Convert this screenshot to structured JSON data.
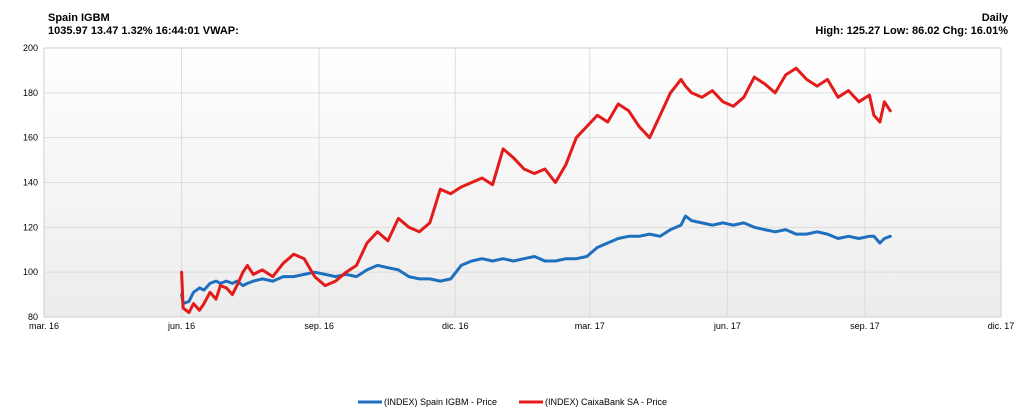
{
  "header": {
    "title": "Spain IGBM",
    "quote": "1035.97 13.47 1.32% 16:44:01 VWAP:",
    "interval": "Daily",
    "stats": "High: 125.27 Low: 86.02 Chg: 16.01%"
  },
  "chart_data": {
    "type": "line",
    "title": "",
    "xlabel": "",
    "ylabel": "",
    "ylim": [
      80,
      200
    ],
    "yticks": [
      80,
      100,
      120,
      140,
      160,
      180,
      200
    ],
    "xlim": [
      "2016-03-01",
      "2017-12-01"
    ],
    "xticks": [
      {
        "date": "2016-03-01",
        "label": "mar. 16"
      },
      {
        "date": "2016-06-01",
        "label": "jun. 16"
      },
      {
        "date": "2016-09-01",
        "label": "sep. 16"
      },
      {
        "date": "2016-12-01",
        "label": "dic. 16"
      },
      {
        "date": "2017-03-01",
        "label": "mar. 17"
      },
      {
        "date": "2017-06-01",
        "label": "jun. 17"
      },
      {
        "date": "2017-09-01",
        "label": "sep. 17"
      },
      {
        "date": "2017-12-01",
        "label": "dic. 17"
      }
    ],
    "grid": true,
    "legend_position": "bottom",
    "series": [
      {
        "name": "(INDEX) Spain IGBM - Price",
        "color": "#1f6fbf",
        "points": [
          [
            "2016-06-01",
            90
          ],
          [
            "2016-06-02",
            86
          ],
          [
            "2016-06-06",
            87
          ],
          [
            "2016-06-09",
            91
          ],
          [
            "2016-06-13",
            93
          ],
          [
            "2016-06-16",
            92
          ],
          [
            "2016-06-20",
            95
          ],
          [
            "2016-06-24",
            96
          ],
          [
            "2016-06-27",
            95
          ],
          [
            "2016-07-01",
            96
          ],
          [
            "2016-07-05",
            95
          ],
          [
            "2016-07-08",
            96
          ],
          [
            "2016-07-12",
            94
          ],
          [
            "2016-07-15",
            95
          ],
          [
            "2016-07-19",
            96
          ],
          [
            "2016-07-25",
            97
          ],
          [
            "2016-08-01",
            96
          ],
          [
            "2016-08-08",
            98
          ],
          [
            "2016-08-15",
            98
          ],
          [
            "2016-08-22",
            99
          ],
          [
            "2016-08-29",
            100
          ],
          [
            "2016-09-05",
            99
          ],
          [
            "2016-09-12",
            98
          ],
          [
            "2016-09-19",
            99
          ],
          [
            "2016-09-26",
            98
          ],
          [
            "2016-10-03",
            101
          ],
          [
            "2016-10-10",
            103
          ],
          [
            "2016-10-17",
            102
          ],
          [
            "2016-10-24",
            101
          ],
          [
            "2016-10-31",
            98
          ],
          [
            "2016-11-07",
            97
          ],
          [
            "2016-11-14",
            97
          ],
          [
            "2016-11-21",
            96
          ],
          [
            "2016-11-28",
            97
          ],
          [
            "2016-12-05",
            103
          ],
          [
            "2016-12-12",
            105
          ],
          [
            "2016-12-19",
            106
          ],
          [
            "2016-12-26",
            105
          ],
          [
            "2017-01-02",
            106
          ],
          [
            "2017-01-09",
            105
          ],
          [
            "2017-01-16",
            106
          ],
          [
            "2017-01-23",
            107
          ],
          [
            "2017-01-30",
            105
          ],
          [
            "2017-02-06",
            105
          ],
          [
            "2017-02-13",
            106
          ],
          [
            "2017-02-20",
            106
          ],
          [
            "2017-02-27",
            107
          ],
          [
            "2017-03-06",
            111
          ],
          [
            "2017-03-13",
            113
          ],
          [
            "2017-03-20",
            115
          ],
          [
            "2017-03-27",
            116
          ],
          [
            "2017-04-03",
            116
          ],
          [
            "2017-04-10",
            117
          ],
          [
            "2017-04-17",
            116
          ],
          [
            "2017-04-24",
            119
          ],
          [
            "2017-05-01",
            121
          ],
          [
            "2017-05-04",
            125
          ],
          [
            "2017-05-08",
            123
          ],
          [
            "2017-05-15",
            122
          ],
          [
            "2017-05-22",
            121
          ],
          [
            "2017-05-29",
            122
          ],
          [
            "2017-06-05",
            121
          ],
          [
            "2017-06-12",
            122
          ],
          [
            "2017-06-19",
            120
          ],
          [
            "2017-06-26",
            119
          ],
          [
            "2017-07-03",
            118
          ],
          [
            "2017-07-10",
            119
          ],
          [
            "2017-07-17",
            117
          ],
          [
            "2017-07-24",
            117
          ],
          [
            "2017-07-31",
            118
          ],
          [
            "2017-08-07",
            117
          ],
          [
            "2017-08-14",
            115
          ],
          [
            "2017-08-21",
            116
          ],
          [
            "2017-08-28",
            115
          ],
          [
            "2017-09-04",
            116
          ],
          [
            "2017-09-07",
            116
          ],
          [
            "2017-09-11",
            113
          ],
          [
            "2017-09-14",
            115
          ],
          [
            "2017-09-18",
            116
          ]
        ]
      },
      {
        "name": "(INDEX) CaixaBank SA - Price",
        "color": "#e31b1b",
        "points": [
          [
            "2016-06-01",
            100
          ],
          [
            "2016-06-02",
            84
          ],
          [
            "2016-06-06",
            82
          ],
          [
            "2016-06-09",
            86
          ],
          [
            "2016-06-13",
            83
          ],
          [
            "2016-06-16",
            86
          ],
          [
            "2016-06-20",
            91
          ],
          [
            "2016-06-24",
            88
          ],
          [
            "2016-06-27",
            94
          ],
          [
            "2016-07-01",
            93
          ],
          [
            "2016-07-05",
            90
          ],
          [
            "2016-07-08",
            94
          ],
          [
            "2016-07-12",
            100
          ],
          [
            "2016-07-15",
            103
          ],
          [
            "2016-07-19",
            99
          ],
          [
            "2016-07-25",
            101
          ],
          [
            "2016-08-01",
            98
          ],
          [
            "2016-08-08",
            104
          ],
          [
            "2016-08-15",
            108
          ],
          [
            "2016-08-22",
            106
          ],
          [
            "2016-08-29",
            98
          ],
          [
            "2016-09-05",
            94
          ],
          [
            "2016-09-12",
            96
          ],
          [
            "2016-09-19",
            100
          ],
          [
            "2016-09-26",
            103
          ],
          [
            "2016-10-03",
            113
          ],
          [
            "2016-10-10",
            118
          ],
          [
            "2016-10-17",
            114
          ],
          [
            "2016-10-24",
            124
          ],
          [
            "2016-10-31",
            120
          ],
          [
            "2016-11-07",
            118
          ],
          [
            "2016-11-14",
            122
          ],
          [
            "2016-11-21",
            137
          ],
          [
            "2016-11-28",
            135
          ],
          [
            "2016-12-05",
            138
          ],
          [
            "2016-12-12",
            140
          ],
          [
            "2016-12-19",
            142
          ],
          [
            "2016-12-26",
            139
          ],
          [
            "2017-01-02",
            155
          ],
          [
            "2017-01-09",
            151
          ],
          [
            "2017-01-16",
            146
          ],
          [
            "2017-01-23",
            144
          ],
          [
            "2017-01-30",
            146
          ],
          [
            "2017-02-06",
            140
          ],
          [
            "2017-02-13",
            148
          ],
          [
            "2017-02-20",
            160
          ],
          [
            "2017-02-27",
            165
          ],
          [
            "2017-03-06",
            170
          ],
          [
            "2017-03-13",
            167
          ],
          [
            "2017-03-20",
            175
          ],
          [
            "2017-03-27",
            172
          ],
          [
            "2017-04-03",
            165
          ],
          [
            "2017-04-10",
            160
          ],
          [
            "2017-04-17",
            170
          ],
          [
            "2017-04-24",
            180
          ],
          [
            "2017-05-01",
            186
          ],
          [
            "2017-05-04",
            183
          ],
          [
            "2017-05-08",
            180
          ],
          [
            "2017-05-15",
            178
          ],
          [
            "2017-05-22",
            181
          ],
          [
            "2017-05-29",
            176
          ],
          [
            "2017-06-05",
            174
          ],
          [
            "2017-06-12",
            178
          ],
          [
            "2017-06-19",
            187
          ],
          [
            "2017-06-26",
            184
          ],
          [
            "2017-07-03",
            180
          ],
          [
            "2017-07-10",
            188
          ],
          [
            "2017-07-17",
            191
          ],
          [
            "2017-07-24",
            186
          ],
          [
            "2017-07-31",
            183
          ],
          [
            "2017-08-07",
            186
          ],
          [
            "2017-08-14",
            178
          ],
          [
            "2017-08-21",
            181
          ],
          [
            "2017-08-28",
            176
          ],
          [
            "2017-09-04",
            179
          ],
          [
            "2017-09-07",
            170
          ],
          [
            "2017-09-11",
            167
          ],
          [
            "2017-09-14",
            176
          ],
          [
            "2017-09-18",
            172
          ]
        ]
      }
    ]
  }
}
